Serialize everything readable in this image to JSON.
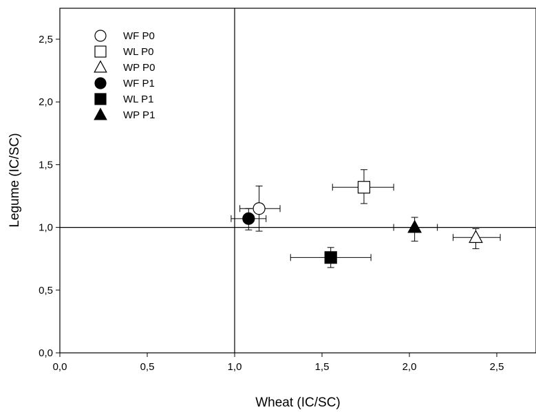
{
  "chart_data": {
    "type": "scatter",
    "title": "",
    "xlabel": "Wheat (IC/SC)",
    "ylabel": "Legume (IC/SC)",
    "xlim": [
      0,
      2.75
    ],
    "ylim": [
      0,
      2.75
    ],
    "x_ticks": [
      "0,0",
      "0,5",
      "1,0",
      "1,5",
      "2,0",
      "2,5"
    ],
    "y_ticks": [
      "0,0",
      "0,5",
      "1,0",
      "1,5",
      "2,0",
      "2,5"
    ],
    "reference_lines": {
      "x": 1.0,
      "y": 1.0
    },
    "grid": false,
    "legend_position": "top-left",
    "series": [
      {
        "name": "WF P0",
        "marker": "circle",
        "fill": "open",
        "x": 1.14,
        "y": 1.15,
        "x_err": [
          1.03,
          1.26
        ],
        "y_err": [
          0.97,
          1.33
        ]
      },
      {
        "name": "WL P0",
        "marker": "square",
        "fill": "open",
        "x": 1.74,
        "y": 1.32,
        "x_err": [
          1.56,
          1.91
        ],
        "y_err": [
          1.19,
          1.46
        ]
      },
      {
        "name": "WP P0",
        "marker": "triangle",
        "fill": "open",
        "x": 2.38,
        "y": 0.92,
        "x_err": [
          2.25,
          2.52
        ],
        "y_err": [
          0.83,
          0.99
        ]
      },
      {
        "name": "WF P1",
        "marker": "circle",
        "fill": "filled",
        "x": 1.08,
        "y": 1.07,
        "x_err": [
          0.98,
          1.18
        ],
        "y_err": [
          0.98,
          1.15
        ]
      },
      {
        "name": "WL P1",
        "marker": "square",
        "fill": "filled",
        "x": 1.55,
        "y": 0.76,
        "x_err": [
          1.32,
          1.78
        ],
        "y_err": [
          0.68,
          0.84
        ]
      },
      {
        "name": "WP P1",
        "marker": "triangle",
        "fill": "filled",
        "x": 2.03,
        "y": 1.0,
        "x_err": [
          1.91,
          2.16
        ],
        "y_err": [
          0.89,
          1.08
        ]
      }
    ]
  }
}
